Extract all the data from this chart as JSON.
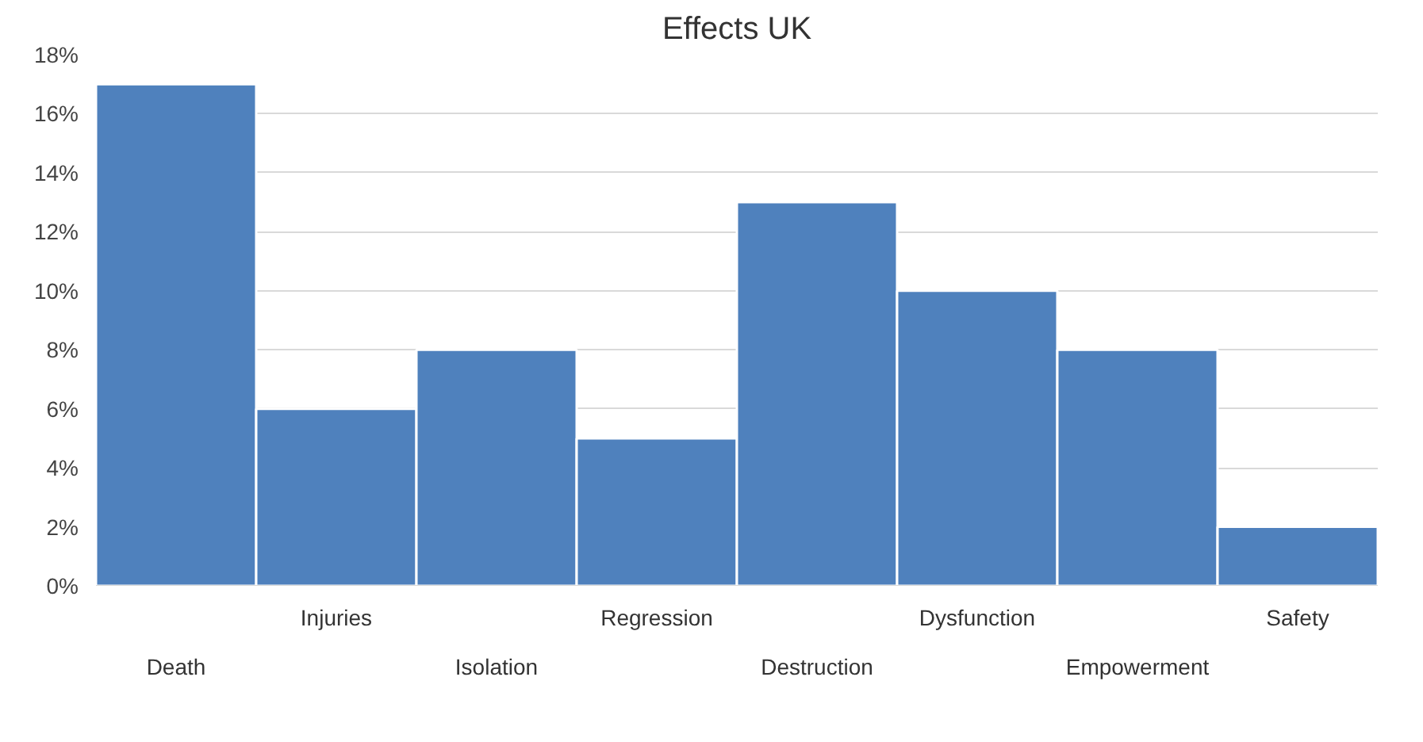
{
  "chart_data": {
    "type": "bar",
    "title": "Effects UK",
    "categories": [
      "Death",
      "Injuries",
      "Isolation",
      "Regression",
      "Destruction",
      "Dysfunction",
      "Empowerment",
      "Safety"
    ],
    "values": [
      17,
      6,
      8,
      5,
      13,
      10,
      8,
      2
    ],
    "color": "#4f81bd",
    "ylim": [
      0,
      18
    ],
    "yticks": [
      {
        "value": 0,
        "label": "0%"
      },
      {
        "value": 2,
        "label": "2%"
      },
      {
        "value": 4,
        "label": "4%"
      },
      {
        "value": 6,
        "label": "6%"
      },
      {
        "value": 8,
        "label": "8%"
      },
      {
        "value": 10,
        "label": "10%"
      },
      {
        "value": 12,
        "label": "12%"
      },
      {
        "value": 14,
        "label": "14%"
      },
      {
        "value": 16,
        "label": "16%"
      },
      {
        "value": 18,
        "label": "18%"
      }
    ],
    "grid": "y"
  }
}
